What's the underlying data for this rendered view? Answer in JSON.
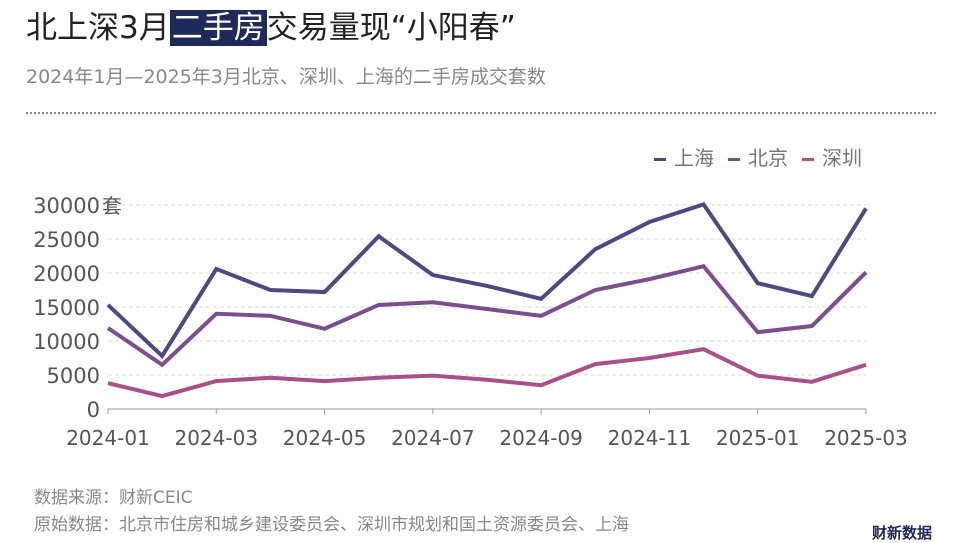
{
  "title": {
    "before": "北上深3月",
    "highlight": "二手房",
    "after": "交易量现“小阳春”"
  },
  "subtitle": "2024年1月—2025年3月北京、深圳、上海的二手房成交套数",
  "footer": {
    "source": "数据来源：财新CEIC",
    "raw": "原始数据：北京市住房和城乡建设委员会、深圳市规划和国土资源委员会、上海",
    "logo": "财新数据"
  },
  "chart_data": {
    "type": "line",
    "x": [
      "2024-01",
      "2024-02",
      "2024-03",
      "2024-04",
      "2024-05",
      "2024-06",
      "2024-07",
      "2024-08",
      "2024-09",
      "2024-10",
      "2024-11",
      "2024-12",
      "2025-01",
      "2025-02",
      "2025-03"
    ],
    "xticks": [
      "2024-01",
      "2024-03",
      "2024-05",
      "2024-07",
      "2024-09",
      "2024-11",
      "2025-01",
      "2025-03"
    ],
    "yticks": [
      "0",
      "5000",
      "10000",
      "15000",
      "20000",
      "25000",
      "30000"
    ],
    "yunit": "套",
    "ylim": [
      0,
      30000
    ],
    "grid": true,
    "legend_position": "top-right",
    "series": [
      {
        "name": "上海",
        "color": "#4b4a82",
        "values": [
          15300,
          7800,
          20600,
          17500,
          17200,
          25400,
          19700,
          18100,
          16200,
          23500,
          27500,
          30100,
          18500,
          16600,
          29500
        ]
      },
      {
        "name": "北京",
        "color": "#7b4f8f",
        "values": [
          11900,
          6500,
          14000,
          13700,
          11800,
          15300,
          15700,
          14700,
          13700,
          17500,
          19100,
          21000,
          11300,
          12200,
          20100
        ]
      },
      {
        "name": "深圳",
        "color": "#a8508a",
        "values": [
          3800,
          1900,
          4100,
          4600,
          4100,
          4600,
          4900,
          4300,
          3500,
          6600,
          7500,
          8800,
          4900,
          4000,
          6500
        ]
      }
    ]
  }
}
